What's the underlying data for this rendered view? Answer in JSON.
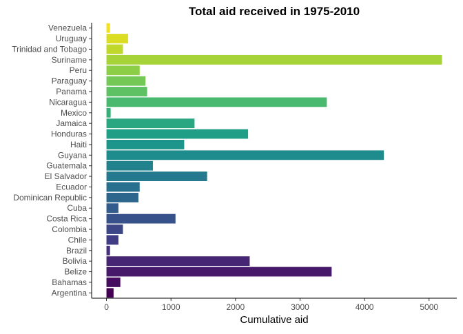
{
  "chart_data": {
    "type": "bar",
    "orientation": "horizontal",
    "title": "Total aid received in 1975-2010",
    "xlabel": "Cumulative aid",
    "ylabel": "",
    "xlim": [
      -230,
      5430
    ],
    "xticks": [
      0,
      1000,
      2000,
      3000,
      4000,
      5000
    ],
    "grid": false,
    "legend": "none",
    "color_scale": "viridis",
    "categories": [
      "Argentina",
      "Bahamas",
      "Belize",
      "Bolivia",
      "Brazil",
      "Chile",
      "Colombia",
      "Costa Rica",
      "Cuba",
      "Dominican Republic",
      "Ecuador",
      "El Salvador",
      "Guatemala",
      "Guyana",
      "Haiti",
      "Honduras",
      "Jamaica",
      "Mexico",
      "Nicaragua",
      "Panama",
      "Paraguay",
      "Peru",
      "Suriname",
      "Trinidad and Tobago",
      "Uruguay",
      "Venezuela"
    ],
    "values": [
      110,
      215,
      3490,
      2220,
      55,
      185,
      255,
      1070,
      185,
      495,
      515,
      1560,
      720,
      4300,
      1205,
      2195,
      1365,
      65,
      3415,
      630,
      605,
      515,
      5200,
      255,
      335,
      55
    ],
    "colors": [
      "#440154",
      "#460C5F",
      "#47196B",
      "#472575",
      "#45317D",
      "#413D84",
      "#3D4788",
      "#37528B",
      "#325C8C",
      "#2D668D",
      "#296F8E",
      "#25798E",
      "#21828E",
      "#1E8B8D",
      "#1D958A",
      "#209E86",
      "#28A780",
      "#37B078",
      "#49B96F",
      "#5EC163",
      "#74C856",
      "#8DCE47",
      "#A6D338",
      "#C0D82A",
      "#DADD21",
      "#F3E11F"
    ]
  }
}
